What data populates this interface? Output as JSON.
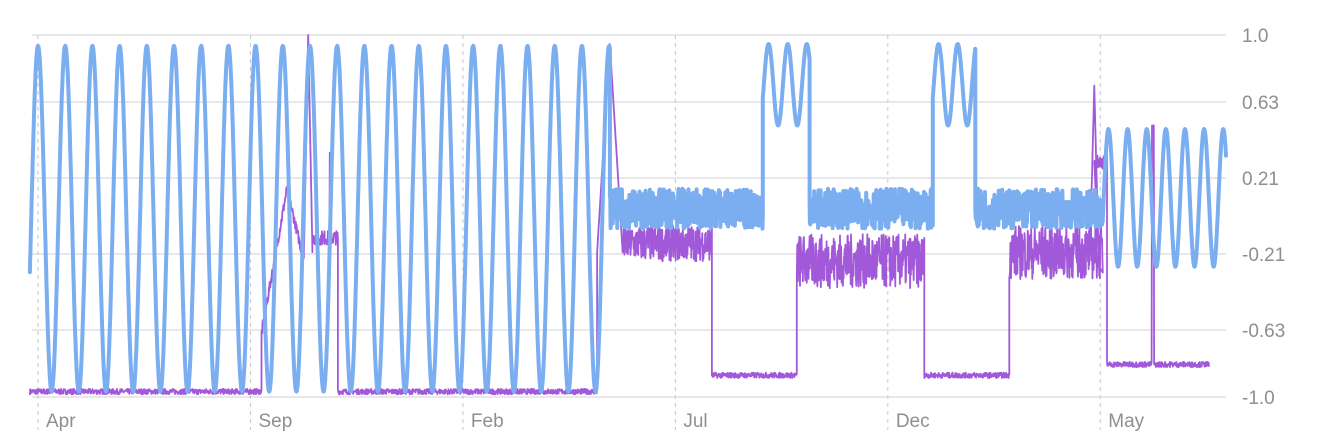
{
  "chart_data": {
    "type": "line",
    "title": "",
    "xlabel": "",
    "ylabel": "",
    "ylim": [
      -1.0,
      1.0
    ],
    "y_ticks": [
      1.0,
      0.63,
      0.21,
      -0.21,
      -0.63,
      -1.0
    ],
    "y_tick_labels": [
      "1.0",
      "0.63",
      "0.21",
      "-0.21",
      "-0.63",
      "-1.0"
    ],
    "x_ticks": [
      "Apr",
      "Sep",
      "Feb",
      "Jul",
      "Dec",
      "May"
    ],
    "xlim_months": [
      0,
      28.1
    ],
    "x_tick_months": [
      0,
      5,
      10,
      15,
      20,
      25
    ],
    "grid": {
      "horizontal": true,
      "vertical_dashed": true
    },
    "legend": "none",
    "series": [
      {
        "color": "#7aaef0",
        "style": "thick",
        "segments": [
          {
            "x_range": [
              -0.05,
              13.6
            ],
            "kind": "oscillation",
            "period": 0.64,
            "low": -0.97,
            "high": 0.94
          },
          {
            "x_range": [
              13.6,
              17.2
            ],
            "kind": "noise",
            "low": -0.07,
            "high": 0.15
          },
          {
            "x_range": [
              17.2,
              18.3
            ],
            "kind": "oscillation",
            "period": 0.45,
            "low": 0.5,
            "high": 0.95
          },
          {
            "x_range": [
              18.3,
              21.2
            ],
            "kind": "noise",
            "low": -0.07,
            "high": 0.15
          },
          {
            "x_range": [
              21.2,
              22.2
            ],
            "kind": "oscillation",
            "period": 0.45,
            "low": 0.5,
            "high": 0.95
          },
          {
            "x_range": [
              22.2,
              25.2
            ],
            "kind": "noise",
            "low": -0.07,
            "high": 0.15
          },
          {
            "x_range": [
              25.2,
              28.1
            ],
            "kind": "oscillation",
            "period": 0.45,
            "low": -0.28,
            "high": 0.48
          }
        ]
      },
      {
        "color": "#a259d9",
        "style": "thin",
        "segments": [
          {
            "x_range": [
              -0.05,
              5.4
            ],
            "kind": "flat",
            "value": -0.97
          },
          {
            "x_range": [
              5.4,
              6.4
            ],
            "kind": "ramp",
            "from": -0.65,
            "to": 0.15,
            "then": -0.25
          },
          {
            "x_range": [
              6.4,
              6.6
            ],
            "kind": "spike",
            "value": 1.0
          },
          {
            "x_range": [
              6.6,
              7.2
            ],
            "kind": "plateau",
            "value": -0.12,
            "spike": 0.35
          },
          {
            "x_range": [
              7.2,
              13.3
            ],
            "kind": "flat",
            "value": -0.97
          },
          {
            "x_range": [
              13.3,
              13.9
            ],
            "kind": "spike",
            "value": 0.95
          },
          {
            "x_range": [
              13.9,
              16.0
            ],
            "kind": "noise",
            "low": -0.25,
            "high": -0.05
          },
          {
            "x_range": [
              16.0,
              18.0
            ],
            "kind": "flat",
            "value": -0.88
          },
          {
            "x_range": [
              18.0,
              21.0
            ],
            "kind": "noise",
            "low": -0.4,
            "high": -0.1
          },
          {
            "x_range": [
              21.0,
              23.0
            ],
            "kind": "flat",
            "value": -0.88
          },
          {
            "x_range": [
              23.0,
              25.2
            ],
            "kind": "noise",
            "low": -0.35,
            "high": -0.05
          },
          {
            "x_range": [
              24.9,
              25.1
            ],
            "kind": "spike",
            "value": 0.72
          },
          {
            "x_range": [
              25.0,
              25.3
            ],
            "kind": "plateau",
            "value": 0.3
          },
          {
            "x_range": [
              25.3,
              27.7
            ],
            "kind": "flat",
            "value": -0.82,
            "spike": 0.5
          }
        ]
      }
    ]
  }
}
